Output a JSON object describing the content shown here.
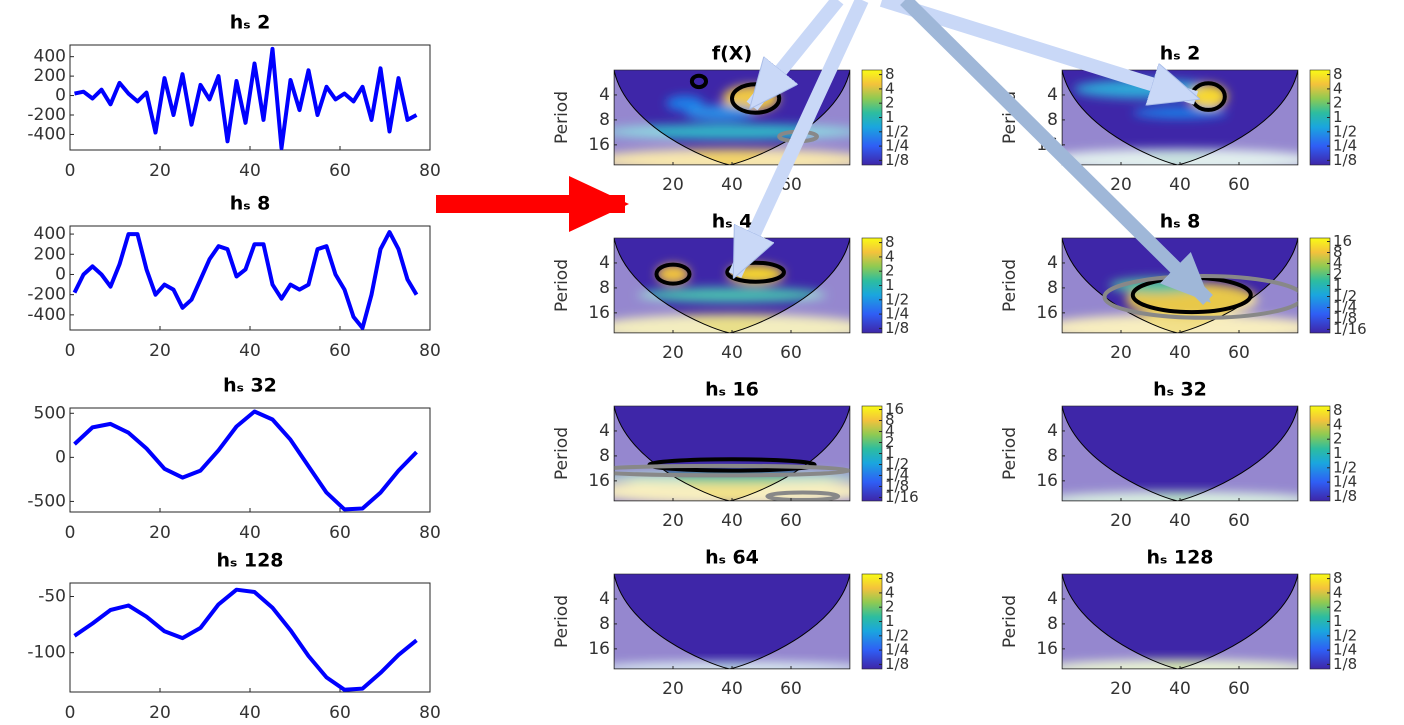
{
  "chart_data": [
    {
      "type": "line",
      "title": "hₛ 2",
      "color": "#0000ff",
      "xlim": [
        0,
        80
      ],
      "ylim": [
        -560,
        520
      ],
      "xticks": [
        0,
        20,
        40,
        60,
        80
      ],
      "yticks": [
        -400,
        -200,
        0,
        200,
        400
      ],
      "x": [
        1,
        3,
        5,
        7,
        9,
        11,
        13,
        15,
        17,
        19,
        21,
        23,
        25,
        27,
        29,
        31,
        33,
        35,
        37,
        39,
        41,
        43,
        45,
        47,
        49,
        51,
        53,
        55,
        57,
        59,
        61,
        63,
        65,
        67,
        69,
        71,
        73,
        75,
        77
      ],
      "values": [
        20,
        40,
        -30,
        60,
        -90,
        130,
        20,
        -60,
        30,
        -380,
        180,
        -200,
        220,
        -300,
        110,
        -40,
        200,
        -470,
        150,
        -280,
        330,
        -250,
        480,
        -540,
        160,
        -150,
        260,
        -200,
        90,
        -40,
        20,
        -60,
        90,
        -250,
        280,
        -370,
        180,
        -250,
        -200
      ]
    },
    {
      "type": "line",
      "title": "hₛ 8",
      "color": "#0000ff",
      "xlim": [
        0,
        80
      ],
      "ylim": [
        -550,
        480
      ],
      "xticks": [
        0,
        20,
        40,
        60,
        80
      ],
      "yticks": [
        -400,
        -200,
        0,
        200,
        400
      ],
      "x": [
        1,
        3,
        5,
        7,
        9,
        11,
        13,
        15,
        17,
        19,
        21,
        23,
        25,
        27,
        29,
        31,
        33,
        35,
        37,
        39,
        41,
        43,
        45,
        47,
        49,
        51,
        53,
        55,
        57,
        59,
        61,
        63,
        65,
        67,
        69,
        71,
        73,
        75,
        77
      ],
      "values": [
        -180,
        0,
        80,
        0,
        -120,
        100,
        400,
        400,
        50,
        -200,
        -100,
        -150,
        -330,
        -250,
        -50,
        150,
        280,
        250,
        -20,
        50,
        300,
        300,
        -100,
        -240,
        -100,
        -150,
        -100,
        250,
        280,
        0,
        -150,
        -420,
        -530,
        -200,
        250,
        420,
        250,
        -50,
        -200
      ]
    },
    {
      "type": "line",
      "title": "hₛ 32",
      "color": "#0000ff",
      "xlim": [
        0,
        80
      ],
      "ylim": [
        -620,
        560
      ],
      "xticks": [
        0,
        20,
        40,
        60,
        80
      ],
      "yticks": [
        -500,
        0,
        500
      ],
      "x": [
        1,
        5,
        9,
        13,
        17,
        21,
        25,
        29,
        33,
        37,
        41,
        45,
        49,
        53,
        57,
        61,
        65,
        69,
        73,
        77
      ],
      "values": [
        150,
        340,
        380,
        280,
        100,
        -130,
        -230,
        -150,
        80,
        350,
        520,
        430,
        200,
        -100,
        -400,
        -590,
        -580,
        -400,
        -150,
        60
      ]
    },
    {
      "type": "line",
      "title": "hₛ 128",
      "color": "#0000ff",
      "xlim": [
        0,
        80
      ],
      "ylim": [
        -135,
        -38
      ],
      "xticks": [
        0,
        20,
        40,
        60,
        80
      ],
      "yticks": [
        -100,
        -50
      ],
      "x": [
        1,
        5,
        9,
        13,
        17,
        21,
        25,
        29,
        33,
        37,
        41,
        45,
        49,
        53,
        57,
        61,
        65,
        69,
        73,
        77
      ],
      "values": [
        -85,
        -74,
        -62,
        -58,
        -68,
        -81,
        -87,
        -78,
        -57,
        -44,
        -46,
        -60,
        -80,
        -103,
        -122,
        -133,
        -132,
        -118,
        -102,
        -89
      ]
    },
    {
      "type": "heatmap",
      "title": "f(X)",
      "ylabel": "Period",
      "xlim": [
        0,
        80
      ],
      "ylim": [
        2,
        28
      ],
      "ylog": true,
      "xticks": [
        20,
        40,
        60
      ],
      "yticks": [
        4,
        8,
        16
      ],
      "colorbar": {
        "clim": [
          0.1,
          10
        ],
        "log": true,
        "ticks": [
          8,
          4,
          2,
          1,
          {
            "value": 0.5,
            "label": "1/2"
          },
          {
            "value": 0.25,
            "label": "1/4"
          },
          {
            "value": 0.125,
            "label": "1/8"
          }
        ]
      }
    },
    {
      "type": "heatmap",
      "title": "hₛ 2",
      "ylabel": "Period",
      "xlim": [
        0,
        80
      ],
      "ylim": [
        2,
        28
      ],
      "ylog": true,
      "xticks": [
        20,
        40,
        60
      ],
      "yticks": [
        4,
        8,
        16
      ],
      "colorbar": {
        "clim": [
          0.1,
          10
        ],
        "log": true,
        "ticks": [
          8,
          4,
          2,
          1,
          {
            "value": 0.5,
            "label": "1/2"
          },
          {
            "value": 0.25,
            "label": "1/4"
          },
          {
            "value": 0.125,
            "label": "1/8"
          }
        ]
      }
    },
    {
      "type": "heatmap",
      "title": "hₛ 4",
      "ylabel": "Period",
      "xlim": [
        0,
        80
      ],
      "ylim": [
        2,
        28
      ],
      "ylog": true,
      "xticks": [
        20,
        40,
        60
      ],
      "yticks": [
        4,
        8,
        16
      ],
      "colorbar": {
        "clim": [
          0.1,
          10
        ],
        "log": true,
        "ticks": [
          8,
          4,
          2,
          1,
          {
            "value": 0.5,
            "label": "1/2"
          },
          {
            "value": 0.25,
            "label": "1/4"
          },
          {
            "value": 0.125,
            "label": "1/8"
          }
        ]
      }
    },
    {
      "type": "heatmap",
      "title": "hₛ 8",
      "ylabel": "Period",
      "xlim": [
        0,
        80
      ],
      "ylim": [
        2,
        28
      ],
      "ylog": true,
      "xticks": [
        20,
        40,
        60
      ],
      "yticks": [
        4,
        8,
        16
      ],
      "colorbar": {
        "clim": [
          0.05,
          20
        ],
        "log": true,
        "ticks": [
          16,
          8,
          4,
          2,
          1,
          {
            "value": 0.5,
            "label": "1/2"
          },
          {
            "value": 0.25,
            "label": "1/4"
          },
          {
            "value": 0.125,
            "label": "1/8"
          },
          {
            "value": 0.0625,
            "label": "1/16"
          }
        ]
      }
    },
    {
      "type": "heatmap",
      "title": "hₛ 16",
      "ylabel": "Period",
      "xlim": [
        0,
        80
      ],
      "ylim": [
        2,
        28
      ],
      "ylog": true,
      "xticks": [
        20,
        40,
        60
      ],
      "yticks": [
        4,
        8,
        16
      ],
      "colorbar": {
        "clim": [
          0.05,
          20
        ],
        "log": true,
        "ticks": [
          16,
          8,
          4,
          2,
          1,
          {
            "value": 0.5,
            "label": "1/2"
          },
          {
            "value": 0.25,
            "label": "1/4"
          },
          {
            "value": 0.125,
            "label": "1/8"
          },
          {
            "value": 0.0625,
            "label": "1/16"
          }
        ]
      }
    },
    {
      "type": "heatmap",
      "title": "hₛ 32",
      "ylabel": "Period",
      "xlim": [
        0,
        80
      ],
      "ylim": [
        2,
        28
      ],
      "ylog": true,
      "xticks": [
        20,
        40,
        60
      ],
      "yticks": [
        4,
        8,
        16
      ],
      "colorbar": {
        "clim": [
          0.1,
          10
        ],
        "log": true,
        "ticks": [
          8,
          4,
          2,
          1,
          {
            "value": 0.5,
            "label": "1/2"
          },
          {
            "value": 0.25,
            "label": "1/4"
          },
          {
            "value": 0.125,
            "label": "1/8"
          }
        ]
      }
    },
    {
      "type": "heatmap",
      "title": "hₛ 64",
      "ylabel": "Period",
      "xlim": [
        0,
        80
      ],
      "ylim": [
        2,
        28
      ],
      "ylog": true,
      "xticks": [
        20,
        40,
        60
      ],
      "yticks": [
        4,
        8,
        16
      ],
      "colorbar": {
        "clim": [
          0.1,
          10
        ],
        "log": true,
        "ticks": [
          8,
          4,
          2,
          1,
          {
            "value": 0.5,
            "label": "1/2"
          },
          {
            "value": 0.25,
            "label": "1/4"
          },
          {
            "value": 0.125,
            "label": "1/8"
          }
        ]
      }
    },
    {
      "type": "heatmap",
      "title": "hₛ 128",
      "ylabel": "Period",
      "xlim": [
        0,
        80
      ],
      "ylim": [
        2,
        28
      ],
      "ylog": true,
      "xticks": [
        20,
        40,
        60
      ],
      "yticks": [
        4,
        8,
        16
      ],
      "colorbar": {
        "clim": [
          0.1,
          10
        ],
        "log": true,
        "ticks": [
          8,
          4,
          2,
          1,
          {
            "value": 0.5,
            "label": "1/2"
          },
          {
            "value": 0.25,
            "label": "1/4"
          },
          {
            "value": 0.125,
            "label": "1/8"
          }
        ]
      }
    }
  ]
}
